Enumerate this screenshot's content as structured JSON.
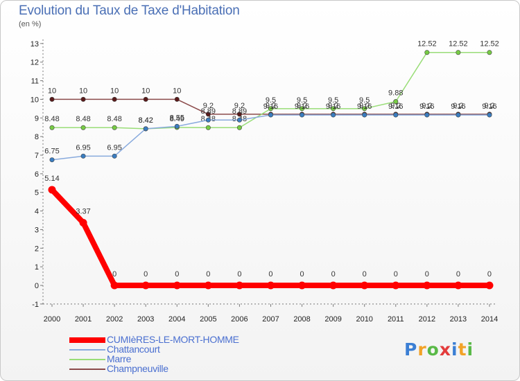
{
  "title": "Evolution du Taux de Taxe d'Habitation",
  "unit": "(en %)",
  "logo": [
    "P",
    "r",
    "o",
    "x",
    "i",
    "t",
    "i"
  ],
  "logo_colors": [
    "#3b7fd4",
    "#f2a227",
    "#59b947",
    "#e33b3b",
    "#3b7fd4",
    "#f2a227",
    "#59b947"
  ],
  "chart_data": {
    "type": "line",
    "title": "Evolution du Taux de Taxe d'Habitation",
    "ylabel": "(en %)",
    "xlabel": "",
    "ylim": [
      -1,
      13
    ],
    "yticks": [
      -1,
      0,
      1,
      2,
      3,
      4,
      5,
      6,
      7,
      8,
      9,
      10,
      11,
      12,
      13
    ],
    "categories": [
      "2000",
      "2001",
      "2002",
      "2003",
      "2004",
      "2005",
      "2006",
      "2007",
      "2008",
      "2009",
      "2010",
      "2011",
      "2012",
      "2013",
      "2014"
    ],
    "series": [
      {
        "name": "Champneuville",
        "color": "#8b4a4a",
        "marker": "#5a1a1a",
        "width": 1.5,
        "values": [
          10,
          10,
          10,
          10,
          10,
          9.2,
          9.2,
          9.2,
          9.2,
          9.2,
          9.2,
          9.2,
          9.2,
          9.2,
          9.2
        ],
        "labels": [
          "10",
          "10",
          "10",
          "10",
          "10",
          "9.2",
          "9.2",
          "9.2",
          "9.2",
          "9.2",
          "9.2",
          "9.2",
          "9.2",
          "9.2",
          "9.2"
        ]
      },
      {
        "name": "Marre",
        "color": "#99dd77",
        "marker": "#77cc44",
        "width": 1.5,
        "values": [
          8.48,
          8.48,
          8.48,
          8.42,
          8.49,
          8.48,
          8.48,
          9.5,
          9.5,
          9.5,
          9.5,
          9.88,
          12.52,
          12.52,
          12.52
        ],
        "labels": [
          "8.48",
          "8.48",
          "8.48",
          "8.42",
          "8.49",
          "8.48",
          "8.48",
          "9.5",
          "9.5",
          "9.5",
          "9.5",
          "9.88",
          "12.52",
          "12.52",
          "12.52"
        ]
      },
      {
        "name": "Chattancourt",
        "color": "#88aadd",
        "marker": "#3a7dc0",
        "width": 1.5,
        "values": [
          6.75,
          6.95,
          6.95,
          8.42,
          8.55,
          8.89,
          8.89,
          9.16,
          9.16,
          9.16,
          9.16,
          9.16,
          9.16,
          9.16,
          9.16
        ],
        "labels": [
          "6.75",
          "6.95",
          "6.95",
          "8.42",
          "8.55",
          "8.89",
          "8.89",
          "9.16",
          "9.16",
          "9.16",
          "9.16",
          "9.16",
          "9.16",
          "9.16",
          "9.16"
        ]
      },
      {
        "name": "CUMIèRES-LE-MORT-HOMME",
        "color": "#ff0000",
        "marker": "#ff0000",
        "width": 8,
        "values": [
          5.14,
          3.37,
          0,
          0,
          0,
          0,
          0,
          0,
          0,
          0,
          0,
          0,
          0,
          0,
          0
        ],
        "labels": [
          "5.14",
          "3.37",
          "0",
          "0",
          "0",
          "0",
          "0",
          "0",
          "0",
          "0",
          "0",
          "0",
          "0",
          "0",
          "0"
        ]
      }
    ],
    "legend": [
      "CUMIèRES-LE-MORT-HOMME",
      "Chattancourt",
      "Marre",
      "Champneuville"
    ],
    "legend_colors": [
      "#ff0000",
      "#88aadd",
      "#99dd77",
      "#8b4a4a"
    ],
    "grid": false
  }
}
